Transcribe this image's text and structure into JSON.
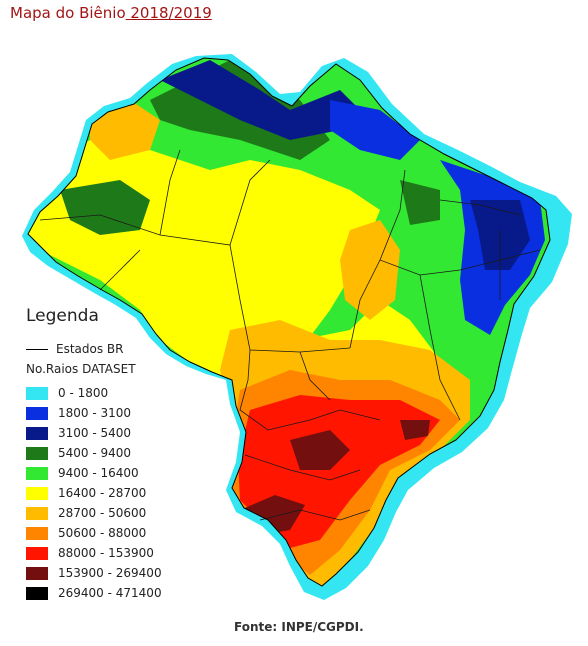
{
  "title": {
    "prefix": "Mapa do Biênio",
    "period": " 2018/2019"
  },
  "legend": {
    "title": "Legenda",
    "boundary_label": "Estados BR",
    "dataset_label": "No.Raios DATASET",
    "classes": [
      {
        "label": "0 - 1800",
        "color": "#33e6f2"
      },
      {
        "label": "1800 - 3100",
        "color": "#0a2fe0"
      },
      {
        "label": "3100 - 5400",
        "color": "#081a8a"
      },
      {
        "label": "5400 - 9400",
        "color": "#1e7a18"
      },
      {
        "label": "9400 - 16400",
        "color": "#32e832"
      },
      {
        "label": "16400 - 28700",
        "color": "#ffff00"
      },
      {
        "label": "28700 - 50600",
        "color": "#ffbb00"
      },
      {
        "label": "50600 - 88000",
        "color": "#ff8400"
      },
      {
        "label": "88000 - 153900",
        "color": "#ff1500"
      },
      {
        "label": "153900 - 269400",
        "color": "#730f0f"
      },
      {
        "label": "269400 - 471400",
        "color": "#000000"
      }
    ]
  },
  "source": "Fonte: INPE/CGPDI."
}
